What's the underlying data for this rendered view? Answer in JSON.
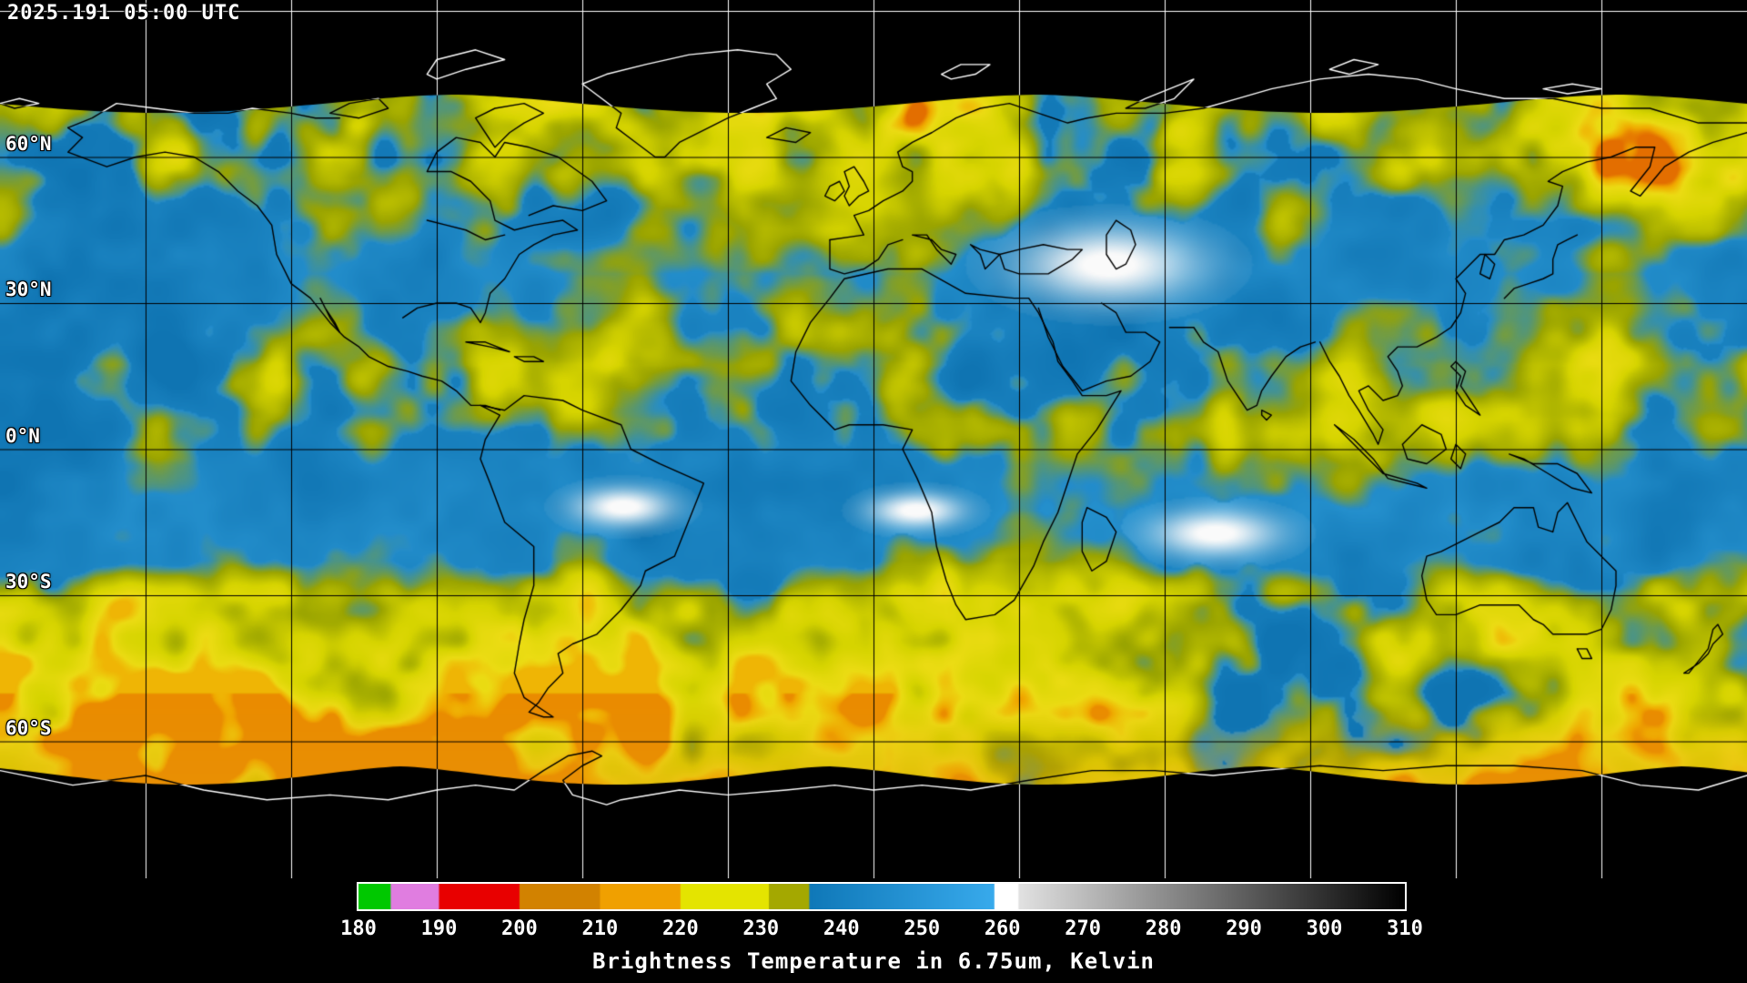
{
  "header": {
    "timestamp": "2025.191 05:00 UTC"
  },
  "map": {
    "lat_labels": [
      "60°N",
      "30°N",
      "0°N",
      "30°S",
      "60°S"
    ],
    "grid": {
      "lat_step_deg": 30,
      "lon_step_deg": 30
    },
    "colors": {
      "space_black": "#000000",
      "dry_blue": "#1a86c4",
      "cloud_olive": "#9aa400",
      "cloud_yellow": "#d6d400",
      "cloud_orange": "#f0a800",
      "cloud_red": "#cc1410",
      "warm_white": "#f8f8f8",
      "coast_over_data": "#000000",
      "coast_over_space": "#ffffff",
      "graticule_over_data": "#000000",
      "graticule_over_space": "#ffffff"
    }
  },
  "colorbar": {
    "caption": "Brightness Temperature in 6.75um, Kelvin",
    "min": 180,
    "max": 310,
    "ticks": [
      180,
      190,
      200,
      210,
      220,
      230,
      240,
      250,
      260,
      270,
      280,
      290,
      300,
      310
    ],
    "segments": [
      {
        "from": 180,
        "to": 184,
        "color": "#00c800"
      },
      {
        "from": 184,
        "to": 190,
        "color": "#e07de0"
      },
      {
        "from": 190,
        "to": 200,
        "color": "#e80000"
      },
      {
        "from": 200,
        "to": 210,
        "color": "#d28200"
      },
      {
        "from": 210,
        "to": 220,
        "color": "#f0a000"
      },
      {
        "from": 220,
        "to": 231,
        "color": "#e4e400"
      },
      {
        "from": 231,
        "to": 236,
        "color": "#a4a800"
      },
      {
        "from": 236,
        "to": 259,
        "color_start": "#0f78b8",
        "color_end": "#38aaec"
      },
      {
        "from": 259,
        "to": 262,
        "color": "#ffffff"
      },
      {
        "from": 262,
        "to": 310,
        "color_start": "#e2e2e2",
        "color_end": "#000000"
      }
    ]
  }
}
